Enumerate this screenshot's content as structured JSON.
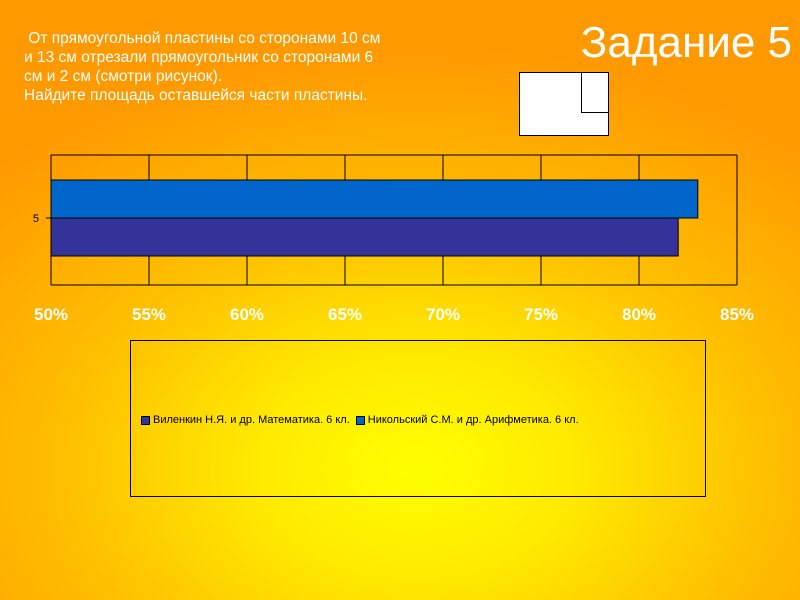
{
  "slide": {
    "title": "Задание 5",
    "task_lines": [
      " От прямоугольной пластины со сторонами 10 см",
      "и 13 см отрезали прямоугольник со сторонами 6",
      "см и 2 см (смотри рисунок).",
      "Найдите площадь оставшейся части пластины."
    ]
  },
  "chart_data": {
    "type": "bar",
    "orientation": "horizontal",
    "categories": [
      "5"
    ],
    "series": [
      {
        "name": "Виленкин Н.Я. и др. Математика. 6 кл.",
        "values": [
          82
        ],
        "color": "#333399"
      },
      {
        "name": "Никольский С.М. и др. Арифметика. 6 кл.",
        "values": [
          83
        ],
        "color": "#0066cc"
      }
    ],
    "xlim": [
      50,
      85
    ],
    "x_ticks": [
      "50%",
      "55%",
      "60%",
      "65%",
      "70%",
      "75%",
      "80%",
      "85%"
    ],
    "grid": true,
    "legend_position": "bottom"
  }
}
